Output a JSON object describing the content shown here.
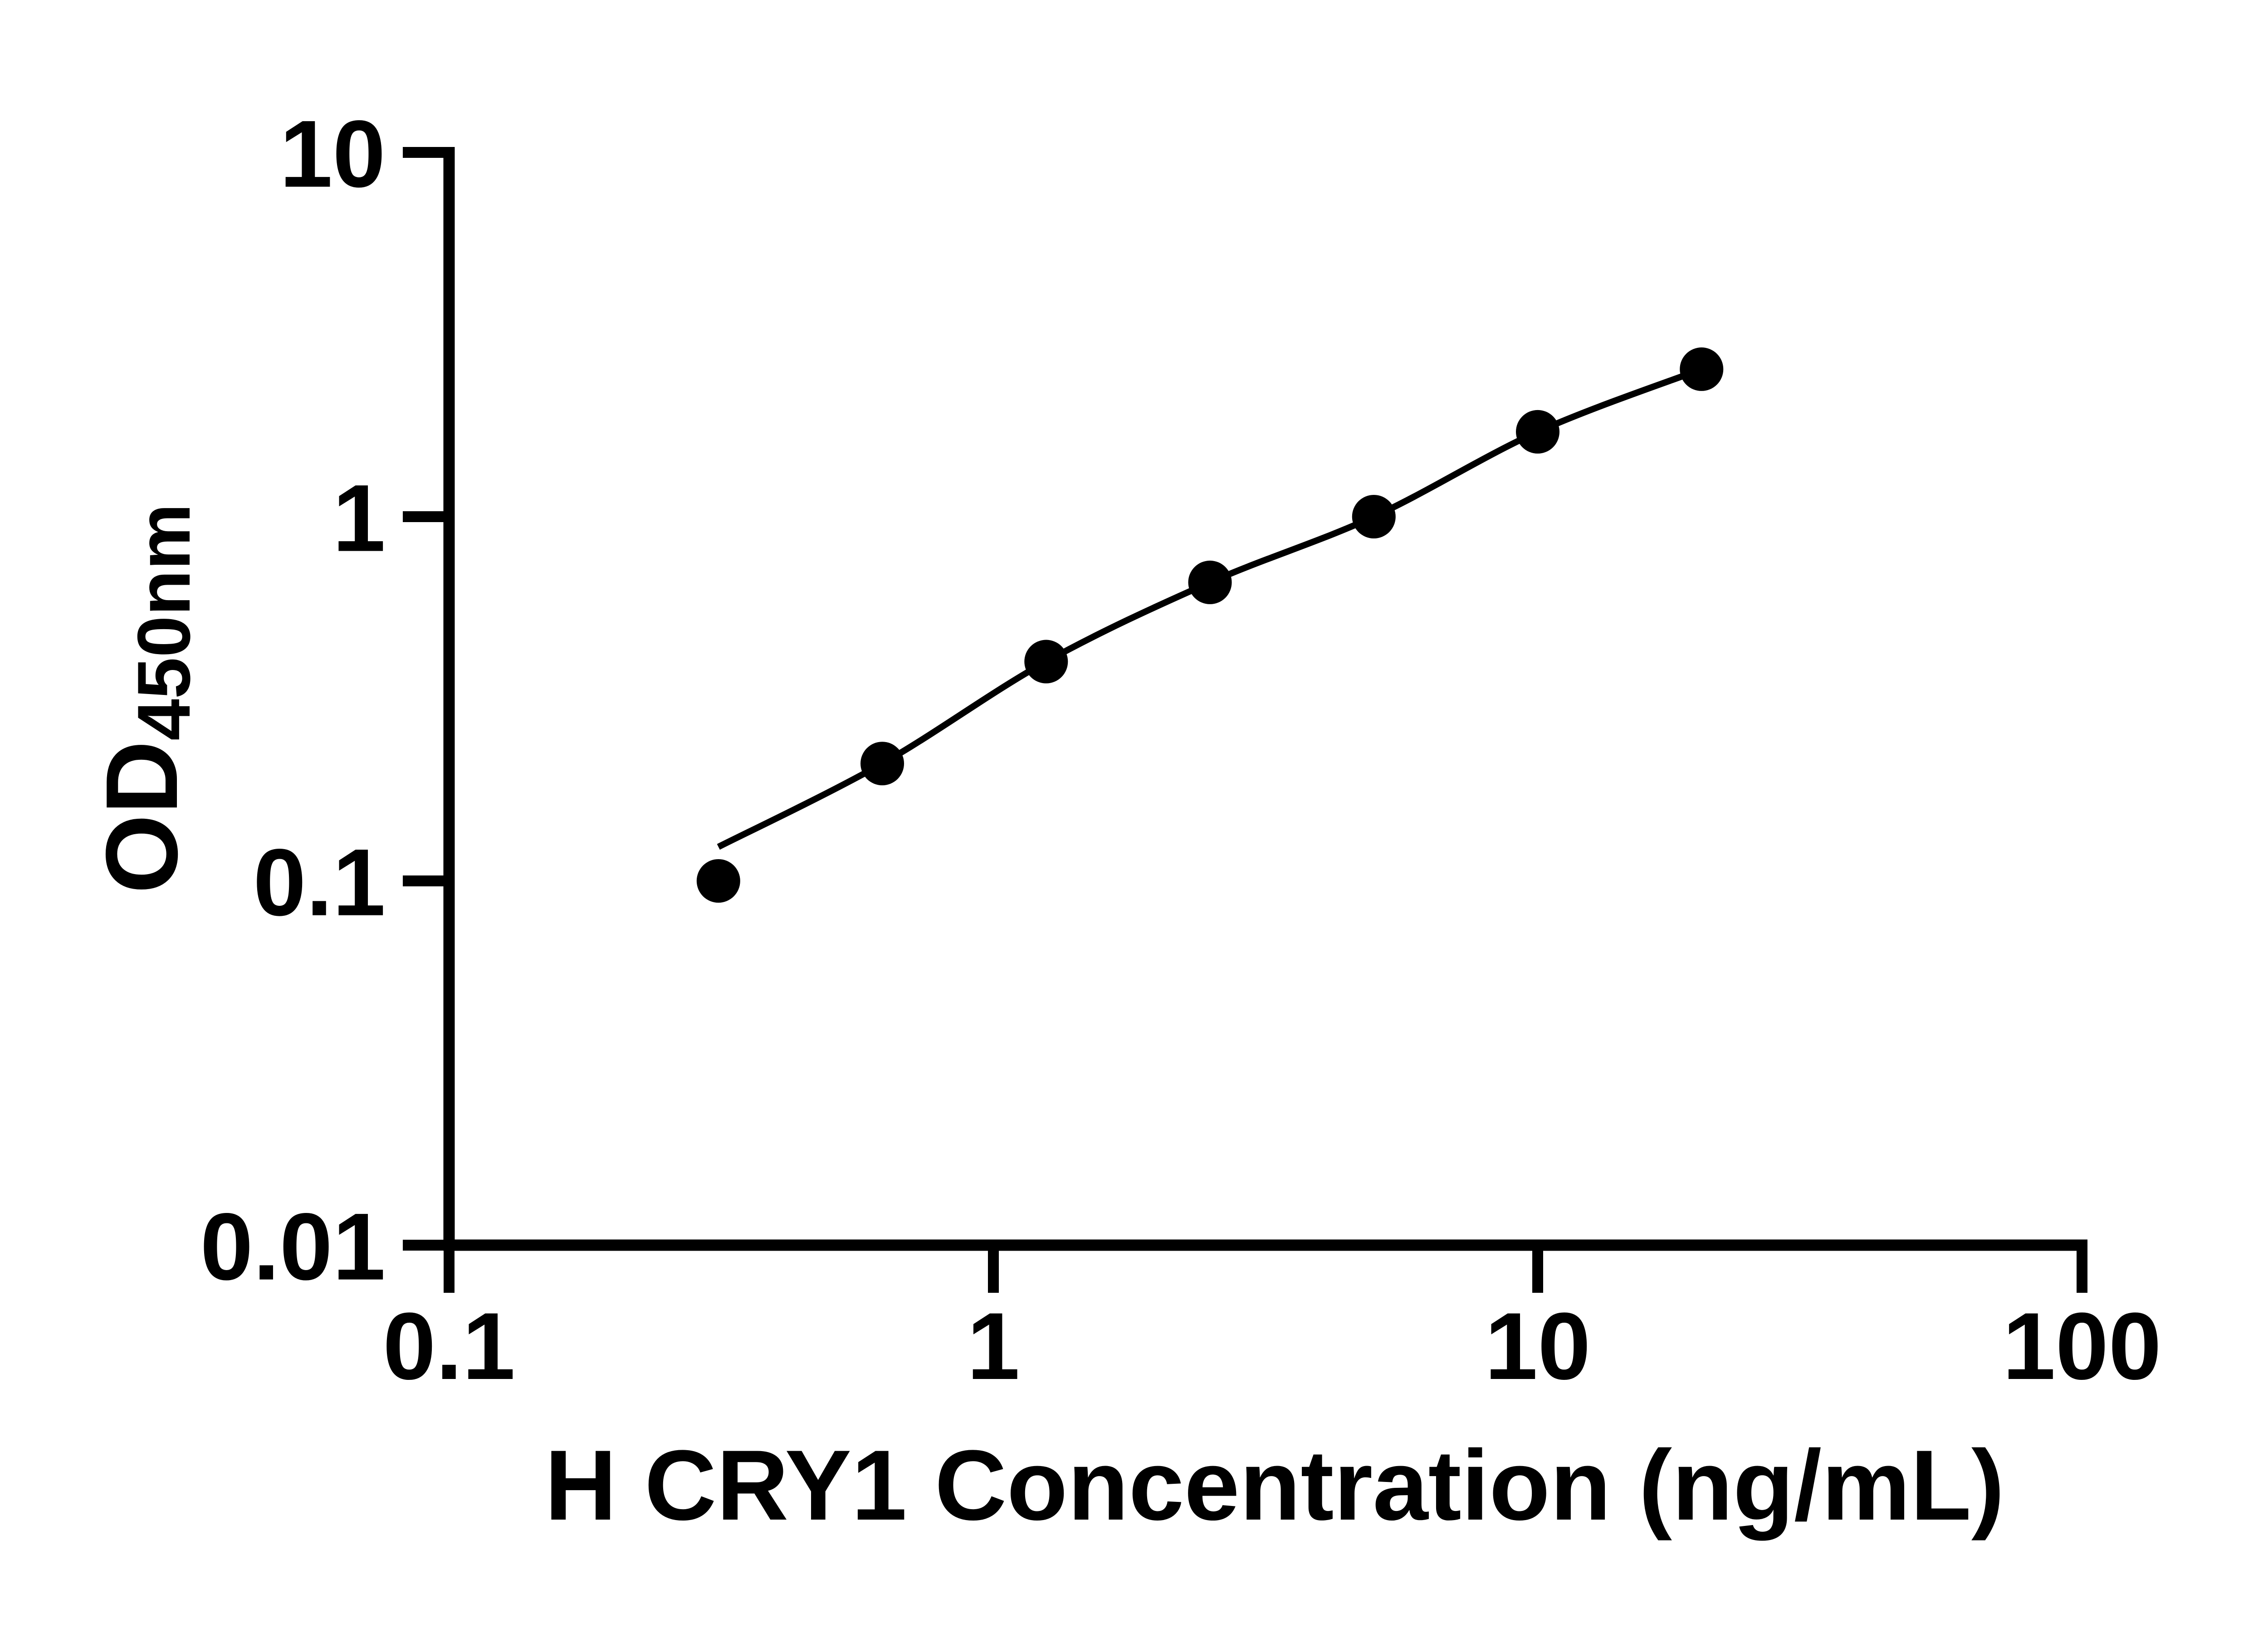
{
  "figure": {
    "background": "#ffffff",
    "ink_color": "#000000"
  },
  "chart_data": {
    "type": "scatter",
    "title": "",
    "xlabel": "H CRY1 Concentration (ng/mL)",
    "ylabel": "OD",
    "ylabel_subscript": "450nm",
    "x_scale": "log",
    "y_scale": "log",
    "xlim": [
      0.1,
      100
    ],
    "ylim": [
      0.01,
      10
    ],
    "grid": false,
    "legend": "none",
    "x_ticks": [
      {
        "value": 0.1,
        "label": "0.1"
      },
      {
        "value": 1,
        "label": "1"
      },
      {
        "value": 10,
        "label": "10"
      },
      {
        "value": 100,
        "label": "100"
      }
    ],
    "y_ticks": [
      {
        "value": 10,
        "label": "10"
      },
      {
        "value": 1,
        "label": "1"
      },
      {
        "value": 0.1,
        "label": "0.1"
      },
      {
        "value": 0.01,
        "label": "0.01"
      }
    ],
    "series": [
      {
        "role": "standard-points",
        "marker": "circle",
        "color": "#000000",
        "x": [
          0.3125,
          0.625,
          1.25,
          2.5,
          5,
          10,
          20
        ],
        "y": [
          0.1,
          0.21,
          0.4,
          0.66,
          1.0,
          1.71,
          2.54
        ]
      },
      {
        "role": "fitted-curve",
        "marker": "none",
        "color": "#000000",
        "x": [
          0.3125,
          0.625,
          1.25,
          2.5,
          5,
          10,
          20
        ],
        "y": [
          0.124,
          0.21,
          0.4,
          0.66,
          1.0,
          1.71,
          2.54
        ]
      }
    ]
  }
}
